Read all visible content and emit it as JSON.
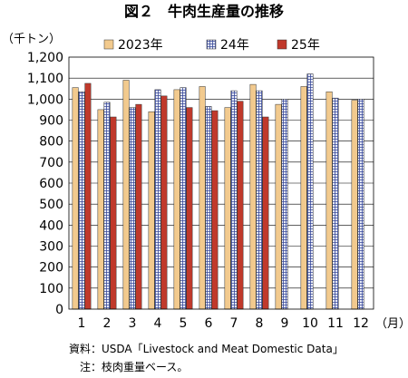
{
  "title": "図２　牛肉生産量の推移",
  "y_unit": "（千トン）",
  "x_unit": "（月）",
  "source_note": "資料：USDA「Livestock and Meat Domestic Data」",
  "note": "注：枝肉重量ベース。",
  "chart_data": {
    "type": "bar",
    "categories": [
      "1",
      "2",
      "3",
      "4",
      "5",
      "6",
      "7",
      "8",
      "9",
      "10",
      "11",
      "12"
    ],
    "series": [
      {
        "name": "2023年",
        "color": "#f2ca8e",
        "pattern": "solid",
        "values": [
          1055,
          950,
          1090,
          940,
          1045,
          1060,
          960,
          1070,
          975,
          1060,
          1035,
          995
        ]
      },
      {
        "name": "24年",
        "color": "#9aa6d8",
        "pattern": "grid",
        "values": [
          1035,
          985,
          960,
          1045,
          1055,
          965,
          1040,
          1040,
          1000,
          1120,
          1005,
          1000
        ]
      },
      {
        "name": "25年",
        "color": "#c0392b",
        "pattern": "solid",
        "values": [
          1075,
          915,
          975,
          1015,
          960,
          945,
          990,
          915,
          null,
          null,
          null,
          null
        ]
      }
    ],
    "yticks": [
      "0",
      "100",
      "200",
      "300",
      "400",
      "500",
      "600",
      "700",
      "800",
      "900",
      "1,000",
      "1,100",
      "1,200"
    ],
    "ylim": [
      0,
      1200
    ],
    "grid": true,
    "legend_position": "top"
  }
}
